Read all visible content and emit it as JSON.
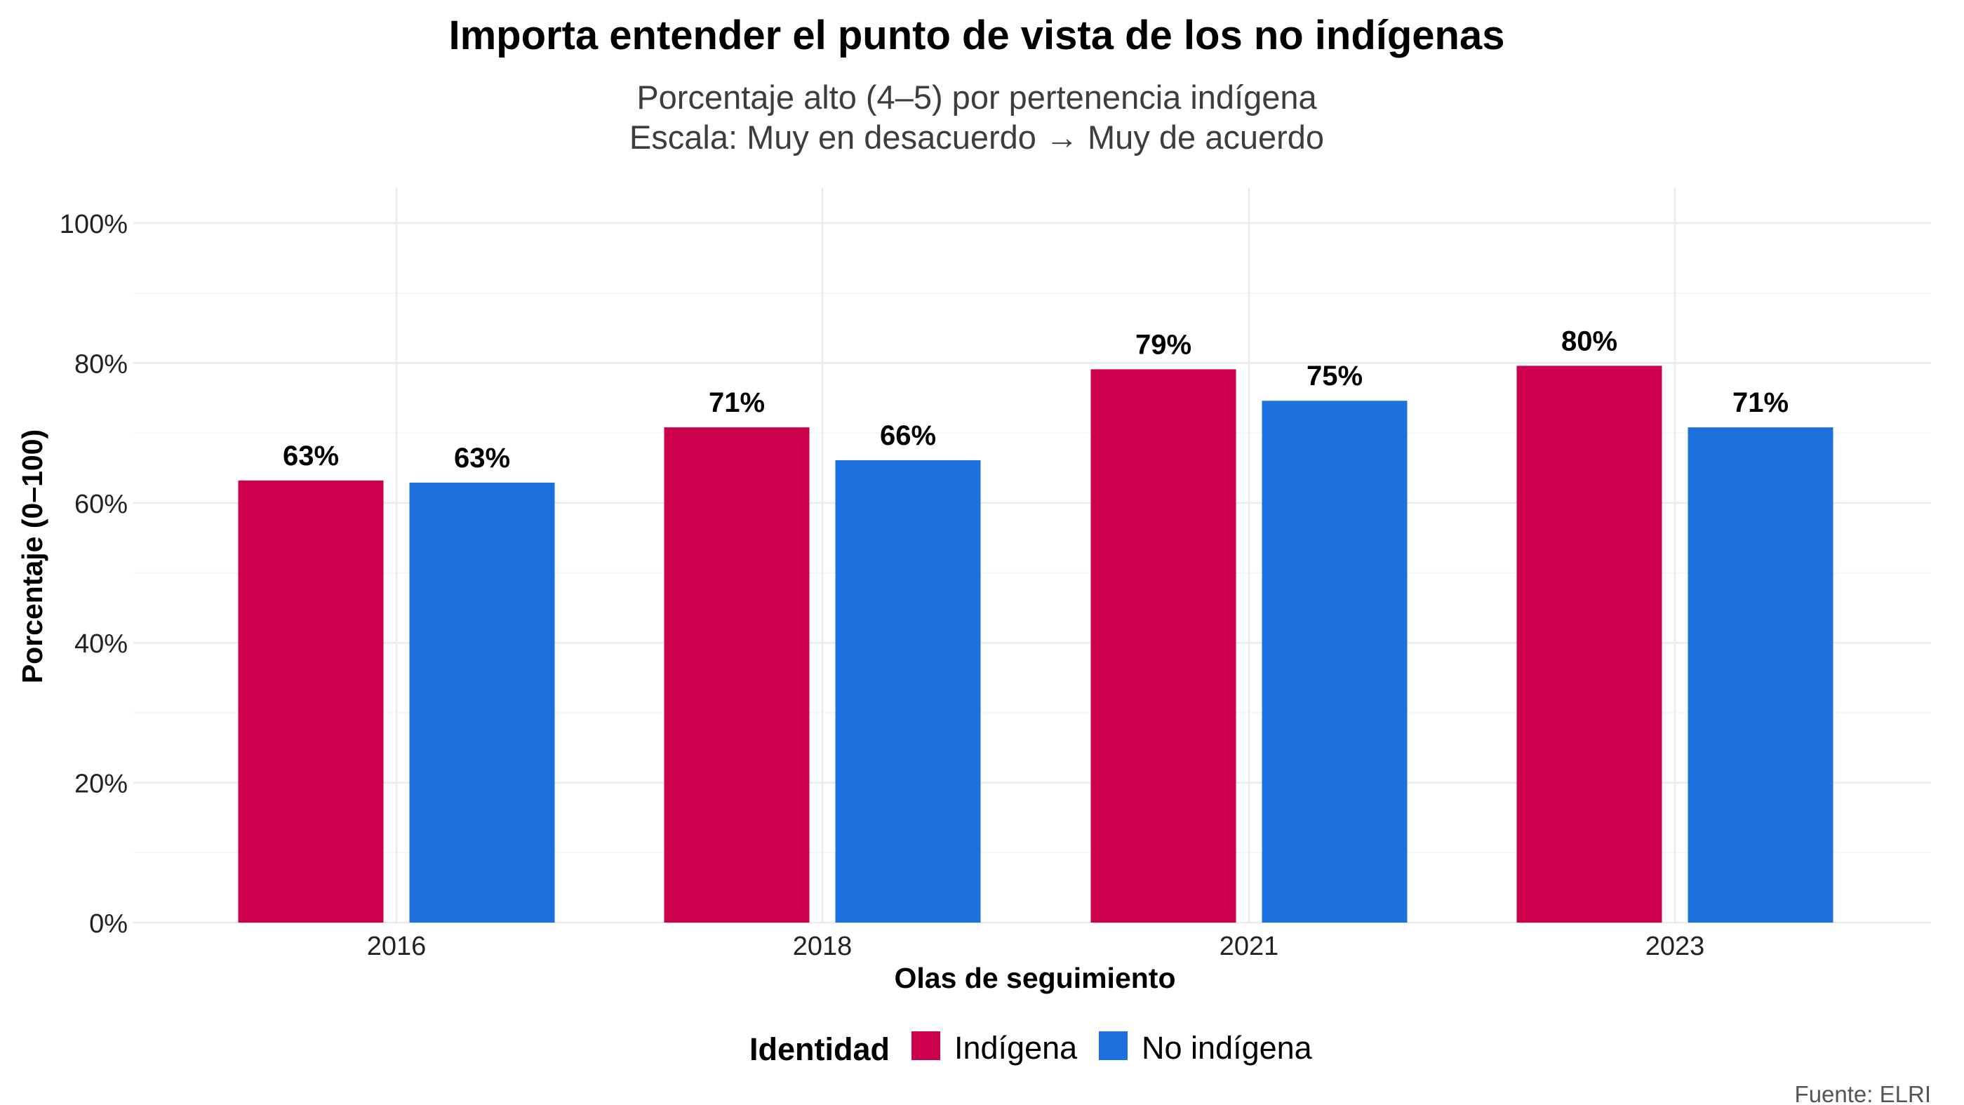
{
  "chart_data": {
    "type": "bar",
    "title": "Importa entender el punto de vista de los no indígenas",
    "subtitle": [
      "Porcentaje alto (4–5) por pertenencia indígena",
      "Escala: Muy en desacuerdo → Muy de acuerdo"
    ],
    "xlabel": "Olas de seguimiento",
    "ylabel": "Porcentaje (0–100)",
    "categories": [
      "2016",
      "2018",
      "2021",
      "2023"
    ],
    "series": [
      {
        "name": "Indígena",
        "color": "#CC004C",
        "values": [
          63.2,
          70.8,
          79.1,
          79.6
        ],
        "labels": [
          "63%",
          "71%",
          "79%",
          "80%"
        ]
      },
      {
        "name": "No indígena",
        "color": "#1C71DE",
        "values": [
          62.9,
          66.1,
          74.6,
          70.8
        ],
        "labels": [
          "63%",
          "66%",
          "75%",
          "71%"
        ]
      }
    ],
    "ylim": [
      0,
      100
    ],
    "yticks": [
      0,
      20,
      40,
      60,
      80,
      100
    ],
    "ytick_labels": [
      "0%",
      "20%",
      "40%",
      "60%",
      "80%",
      "100%"
    ],
    "grid": true,
    "legend": {
      "title": "Identidad",
      "position": "bottom"
    },
    "caption": "Fuente: ELRI"
  }
}
